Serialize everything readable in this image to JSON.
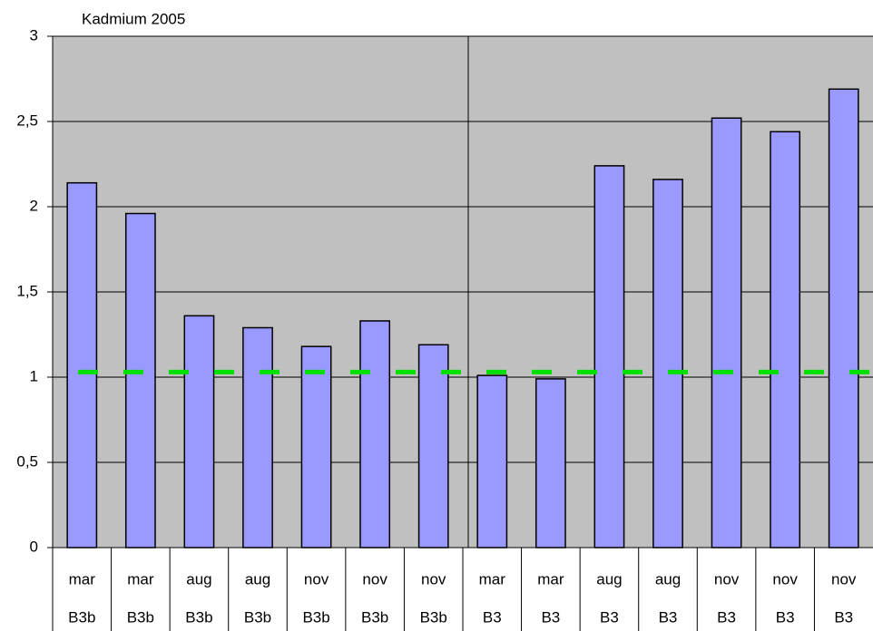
{
  "chart_data": {
    "type": "bar",
    "title": "Kadmium 2005",
    "categories": [
      "mar",
      "mar",
      "aug",
      "aug",
      "nov",
      "nov",
      "nov",
      "mar",
      "mar",
      "aug",
      "aug",
      "nov",
      "nov",
      "nov"
    ],
    "category_groups": [
      "B3b",
      "B3b",
      "B3b",
      "B3b",
      "B3b",
      "B3b",
      "B3b",
      "B3",
      "B3",
      "B3",
      "B3",
      "B3",
      "B3",
      "B3"
    ],
    "values": [
      2.14,
      1.96,
      1.36,
      1.29,
      1.18,
      1.33,
      1.19,
      1.01,
      0.99,
      2.24,
      2.16,
      2.52,
      2.44,
      2.69
    ],
    "color": "#9999ff",
    "ylim": [
      0,
      3
    ],
    "yticks": [
      0,
      {
        "value": 0.5,
        "label": "0,5"
      },
      1,
      {
        "value": 1.5,
        "label": "1,5"
      },
      2,
      {
        "value": 2.5,
        "label": "2,5"
      },
      3
    ],
    "grid": true,
    "reference_line": {
      "value": 1.03,
      "color": "#00e000"
    }
  }
}
